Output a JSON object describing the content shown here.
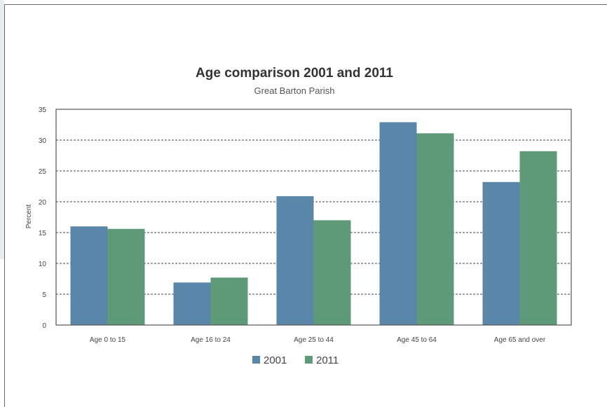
{
  "chart_data": {
    "type": "bar",
    "title": "Age comparison 2001 and 2011",
    "subtitle": "Great Barton Parish",
    "xlabel": "",
    "ylabel": "Percent",
    "ylim": [
      0,
      35
    ],
    "yticks": [
      0,
      5,
      10,
      15,
      20,
      25,
      30,
      35
    ],
    "grid": true,
    "legend_position": "bottom-center",
    "categories": [
      "Age 0 to 15",
      "Age 16 to 24",
      "Age 25 to 44",
      "Age 45 to 64",
      "Age 65 and over"
    ],
    "series": [
      {
        "name": "2001",
        "color": "#5a86aa",
        "values": [
          16,
          6.9,
          20.9,
          32.9,
          23.2
        ]
      },
      {
        "name": "2011",
        "color": "#5f9a78",
        "values": [
          15.6,
          7.7,
          17,
          31.1,
          28.2
        ]
      }
    ]
  }
}
